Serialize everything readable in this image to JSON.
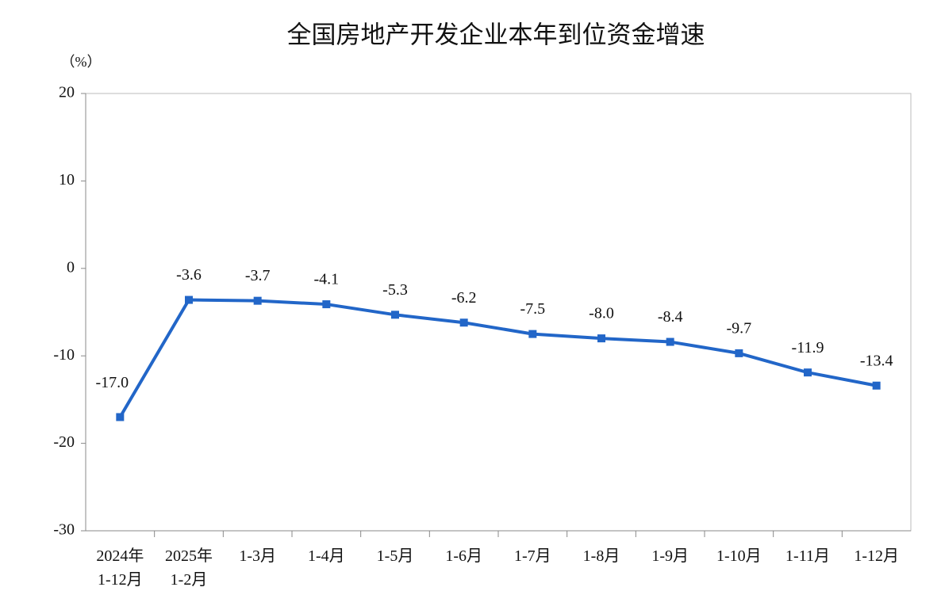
{
  "chart_data": {
    "type": "line",
    "title": "全国房地产开发企业本年到位资金增速",
    "y_label": "（%）",
    "categories": [
      "2024年\n1-12月",
      "2025年\n1-2月",
      "1-3月",
      "1-4月",
      "1-5月",
      "1-6月",
      "1-7月",
      "1-8月",
      "1-9月",
      "1-10月",
      "1-11月",
      "1-12月"
    ],
    "series": [
      {
        "name": "本年到位资金增速",
        "color": "#2266c8",
        "values": [
          -17.0,
          -3.6,
          -3.7,
          -4.1,
          -5.3,
          -6.2,
          -7.5,
          -8.0,
          -8.4,
          -9.7,
          -11.9,
          -13.4
        ],
        "value_labels": [
          "-17.0",
          "-3.6",
          "-3.7",
          "-4.1",
          "-5.3",
          "-6.2",
          "-7.5",
          "-8.0",
          "-8.4",
          "-9.7",
          "-11.9",
          "-13.4"
        ]
      }
    ],
    "ylim": [
      -30,
      20
    ],
    "yticks": [
      -30,
      -20,
      -10,
      0,
      10,
      20
    ],
    "grid": false
  }
}
